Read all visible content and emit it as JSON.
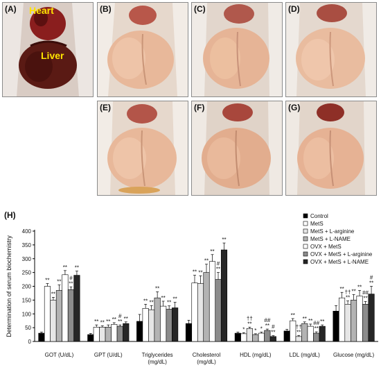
{
  "panels": [
    {
      "label": "(A)",
      "kind": "control"
    },
    {
      "label": "(B)",
      "kind": "fatty"
    },
    {
      "label": "(C)",
      "kind": "fatty"
    },
    {
      "label": "(D)",
      "kind": "fatty"
    },
    {
      "label": "(E)",
      "kind": "fatty"
    },
    {
      "label": "(F)",
      "kind": "fatty"
    },
    {
      "label": "(G)",
      "kind": "fatty"
    }
  ],
  "organ_labels": {
    "heart": "Heart",
    "liver": "Liver"
  },
  "colors": {
    "organ_label": "#ffe400",
    "fatty_liver": "#e8b89a",
    "normal_liver": "#5a1a14"
  },
  "chart_data": {
    "panel_label": "(H)",
    "type": "bar",
    "ylabel": "Determination of serum biochemistry",
    "ylim": [
      0,
      400
    ],
    "yticks": [
      0,
      50,
      100,
      150,
      200,
      250,
      300,
      350,
      400
    ],
    "grid": false,
    "legend_position": "top-right",
    "categories": [
      "GOT (U/dL)",
      "GPT (U/dL)",
      "Triglycerides (mg/dL)",
      "Cholesterol (mg/dL)",
      "HDL (mg/dL)",
      "LDL (mg/dL)",
      "Glucose (mg/dL)"
    ],
    "category_lines": [
      [
        "GOT (U/dL)"
      ],
      [
        "GPT (U/dL)"
      ],
      [
        "Triglycerides",
        "(mg/dL)"
      ],
      [
        "Cholesterol",
        "(mg/dL)"
      ],
      [
        "HDL (mg/dL)"
      ],
      [
        "LDL (mg/dL)"
      ],
      [
        "Glucose (mg/dL)"
      ]
    ],
    "series": [
      {
        "name": "Control",
        "color": "#000000",
        "values": [
          30,
          25,
          73,
          65,
          30,
          38,
          110
        ],
        "errors": [
          4,
          4,
          25,
          12,
          4,
          6,
          20
        ]
      },
      {
        "name": "MetS",
        "color": "#ffffff",
        "values": [
          200,
          52,
          120,
          212,
          28,
          75,
          158
        ],
        "errors": [
          10,
          8,
          15,
          28,
          4,
          8,
          20
        ]
      },
      {
        "name": "MetS + L-arginine",
        "color": "#e6e6e6",
        "values": [
          150,
          52,
          115,
          210,
          47,
          18,
          135
        ],
        "errors": [
          10,
          5,
          15,
          28,
          5,
          4,
          12
        ]
      },
      {
        "name": "MetS + L-NAME",
        "color": "#b3b3b3",
        "values": [
          185,
          52,
          158,
          250,
          25,
          65,
          150
        ],
        "errors": [
          20,
          8,
          22,
          30,
          3,
          6,
          20
        ]
      },
      {
        "name": "OVX + MetS",
        "color": "#ffffff",
        "values": [
          242,
          62,
          128,
          290,
          30,
          55,
          165
        ],
        "errors": [
          15,
          6,
          18,
          25,
          4,
          8,
          20
        ]
      },
      {
        "name": "OVX + MetS + L-arginine",
        "color": "#8c8c8c",
        "values": [
          188,
          55,
          117,
          225,
          40,
          30,
          135
        ],
        "errors": [
          10,
          5,
          12,
          25,
          5,
          5,
          10
        ]
      },
      {
        "name": "OVX + MetS + L-NAME",
        "color": "#262626",
        "values": [
          240,
          65,
          122,
          332,
          18,
          55,
          172
        ],
        "errors": [
          15,
          6,
          20,
          25,
          3,
          5,
          28
        ]
      }
    ],
    "annotations": [
      {
        "category": 0,
        "series": 1,
        "text": "**"
      },
      {
        "category": 0,
        "series": 2,
        "text": "**"
      },
      {
        "category": 0,
        "series": 3,
        "text": "**"
      },
      {
        "category": 0,
        "series": 4,
        "text": "**"
      },
      {
        "category": 0,
        "series": 5,
        "text": "**"
      },
      {
        "category": 0,
        "series": 5,
        "text": "#"
      },
      {
        "category": 0,
        "series": 6,
        "text": "**"
      },
      {
        "category": 1,
        "series": 1,
        "text": "**"
      },
      {
        "category": 1,
        "series": 2,
        "text": "**"
      },
      {
        "category": 1,
        "series": 3,
        "text": "**"
      },
      {
        "category": 1,
        "series": 4,
        "text": "**"
      },
      {
        "category": 1,
        "series": 5,
        "text": "**"
      },
      {
        "category": 1,
        "series": 5,
        "text": "#"
      },
      {
        "category": 1,
        "series": 6,
        "text": "**"
      },
      {
        "category": 2,
        "series": 1,
        "text": "**"
      },
      {
        "category": 2,
        "series": 2,
        "text": "**"
      },
      {
        "category": 2,
        "series": 3,
        "text": "**"
      },
      {
        "category": 2,
        "series": 4,
        "text": "**"
      },
      {
        "category": 2,
        "series": 5,
        "text": "**"
      },
      {
        "category": 2,
        "series": 6,
        "text": "**"
      },
      {
        "category": 3,
        "series": 1,
        "text": "**"
      },
      {
        "category": 3,
        "series": 2,
        "text": "**"
      },
      {
        "category": 3,
        "series": 3,
        "text": "**"
      },
      {
        "category": 3,
        "series": 4,
        "text": "**"
      },
      {
        "category": 3,
        "series": 5,
        "text": "**"
      },
      {
        "category": 3,
        "series": 5,
        "text": "#"
      },
      {
        "category": 3,
        "series": 6,
        "text": "**"
      },
      {
        "category": 4,
        "series": 1,
        "text": "*"
      },
      {
        "category": 4,
        "series": 2,
        "text": "**"
      },
      {
        "category": 4,
        "series": 2,
        "text": "††"
      },
      {
        "category": 4,
        "series": 3,
        "text": "*"
      },
      {
        "category": 4,
        "series": 4,
        "text": "*"
      },
      {
        "category": 4,
        "series": 5,
        "text": "**"
      },
      {
        "category": 4,
        "series": 5,
        "text": "##"
      },
      {
        "category": 4,
        "series": 6,
        "text": "**"
      },
      {
        "category": 4,
        "series": 6,
        "text": "#"
      },
      {
        "category": 5,
        "series": 1,
        "text": "**"
      },
      {
        "category": 5,
        "series": 2,
        "text": "**"
      },
      {
        "category": 5,
        "series": 2,
        "text": "††"
      },
      {
        "category": 5,
        "series": 3,
        "text": "**"
      },
      {
        "category": 5,
        "series": 4,
        "text": "**"
      },
      {
        "category": 5,
        "series": 5,
        "text": "**"
      },
      {
        "category": 5,
        "series": 5,
        "text": "##"
      },
      {
        "category": 5,
        "series": 6,
        "text": "**"
      },
      {
        "category": 6,
        "series": 1,
        "text": "**"
      },
      {
        "category": 6,
        "series": 2,
        "text": "**"
      },
      {
        "category": 6,
        "series": 2,
        "text": "††"
      },
      {
        "category": 6,
        "series": 3,
        "text": "**"
      },
      {
        "category": 6,
        "series": 4,
        "text": "**"
      },
      {
        "category": 6,
        "series": 5,
        "text": "**"
      },
      {
        "category": 6,
        "series": 5,
        "text": "##"
      },
      {
        "category": 6,
        "series": 6,
        "text": "**"
      },
      {
        "category": 6,
        "series": 6,
        "text": "#"
      }
    ]
  }
}
